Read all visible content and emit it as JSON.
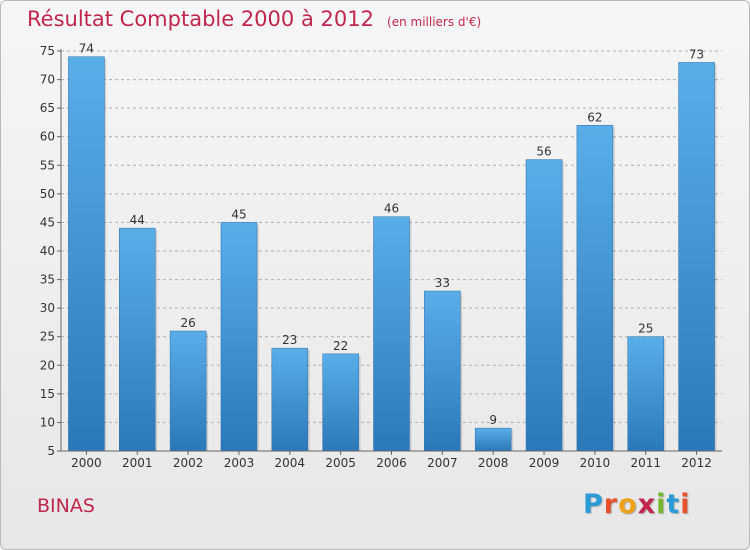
{
  "title": "Résultat Comptable 2000 à 2012",
  "subtitle": "(en milliers d'€)",
  "commune": "BINAS",
  "logo": {
    "text": "Proxiti",
    "letters": [
      "P",
      "r",
      "o",
      "x",
      "i",
      "t",
      "i"
    ],
    "colors": [
      "#2a9bd6",
      "#e8502a",
      "#f0a11c",
      "#c0264f",
      "#74b72e",
      "#2a9bd6",
      "#e8502a"
    ]
  },
  "chart_data": {
    "type": "bar",
    "title": "Résultat Comptable 2000 à 2012",
    "subtitle": "(en milliers d'€)",
    "xlabel": "",
    "ylabel": "",
    "categories": [
      "2000",
      "2001",
      "2002",
      "2003",
      "2004",
      "2005",
      "2006",
      "2007",
      "2008",
      "2009",
      "2010",
      "2011",
      "2012"
    ],
    "values": [
      74,
      44,
      26,
      45,
      23,
      22,
      46,
      33,
      9,
      56,
      62,
      25,
      73
    ],
    "ylim": [
      5,
      75
    ],
    "yticks": [
      5,
      10,
      15,
      20,
      25,
      30,
      35,
      40,
      45,
      50,
      55,
      60,
      65,
      70,
      75
    ],
    "grid": true,
    "bar_color": "#3a8fd4",
    "grid_color": "#b0b0b0"
  }
}
